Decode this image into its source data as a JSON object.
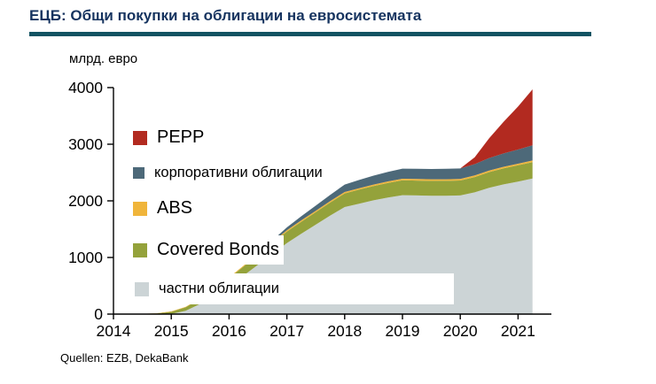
{
  "title": "ЕЦБ: Общи покупки на облигации на евросистемата",
  "y_axis_label": "млрд. евро",
  "source": "Quellen: EZB, DekaBank",
  "colors": {
    "title_text": "#15335f",
    "title_rule": "#115362",
    "axis": "#000000"
  },
  "chart_data": {
    "type": "area",
    "stacked": true,
    "title": "ЕЦБ: Общи покупки на облигации на евросистемата",
    "ylabel": "млрд. евро",
    "xlim": [
      2014,
      2021.35
    ],
    "ylim": [
      0,
      4000
    ],
    "y_ticks": [
      0,
      1000,
      2000,
      3000,
      4000
    ],
    "x_ticks": [
      2014,
      2015,
      2016,
      2017,
      2018,
      2019,
      2020,
      2021
    ],
    "grid": false,
    "legend_position": "overlay-left",
    "x": [
      2014.0,
      2014.25,
      2014.5,
      2014.75,
      2015.0,
      2015.25,
      2015.5,
      2015.75,
      2016.0,
      2016.25,
      2016.5,
      2016.75,
      2017.0,
      2017.25,
      2017.5,
      2017.75,
      2018.0,
      2018.25,
      2018.5,
      2018.75,
      2019.0,
      2019.25,
      2019.5,
      2019.75,
      2020.0,
      2020.25,
      2020.5,
      2020.75,
      2021.0,
      2021.25
    ],
    "series": [
      {
        "name": "частни облигации",
        "color": "#ccd4d6",
        "values": [
          0,
          0,
          0,
          0,
          5,
          60,
          180,
          340,
          490,
          680,
          870,
          1060,
          1255,
          1420,
          1580,
          1740,
          1890,
          1950,
          2010,
          2060,
          2100,
          2095,
          2090,
          2090,
          2095,
          2150,
          2230,
          2290,
          2340,
          2395
        ]
      },
      {
        "name": "Covered Bonds",
        "color": "#94a23b",
        "values": [
          0,
          0,
          3,
          12,
          35,
          60,
          90,
          120,
          143,
          160,
          175,
          190,
          203,
          212,
          220,
          230,
          241,
          248,
          252,
          257,
          262,
          263,
          263,
          264,
          264,
          270,
          278,
          283,
          288,
          290
        ]
      },
      {
        "name": "ABS",
        "color": "#f0b53b",
        "values": [
          0,
          0,
          1,
          3,
          8,
          10,
          12,
          14,
          15,
          17,
          19,
          21,
          23,
          24,
          24,
          25,
          25,
          26,
          26,
          27,
          28,
          28,
          28,
          28,
          28,
          28,
          28,
          28,
          28,
          28
        ]
      },
      {
        "name": "корпоративни облигации",
        "color": "#4d6979",
        "values": [
          0,
          0,
          0,
          0,
          0,
          0,
          0,
          0,
          0,
          0,
          10,
          30,
          51,
          72,
          92,
          112,
          132,
          145,
          157,
          168,
          178,
          180,
          182,
          183,
          185,
          200,
          220,
          236,
          250,
          266
        ]
      },
      {
        "name": "PEPP",
        "color": "#b22a20",
        "values": [
          0,
          0,
          0,
          0,
          0,
          0,
          0,
          0,
          0,
          0,
          0,
          0,
          0,
          0,
          0,
          0,
          0,
          0,
          0,
          0,
          0,
          0,
          0,
          0,
          0,
          120,
          350,
          560,
          760,
          990
        ]
      }
    ],
    "legend": [
      {
        "label": "PEPP",
        "color": "#b22a20",
        "large": true
      },
      {
        "label": "корпоративни облигации",
        "color": "#4d6979",
        "large": false
      },
      {
        "label": "ABS",
        "color": "#f0b53b",
        "large": true
      },
      {
        "label": "Covered Bonds",
        "color": "#94a23b",
        "large": true
      },
      {
        "label": "частни облигации",
        "color": "#ccd4d6",
        "large": false
      }
    ]
  }
}
